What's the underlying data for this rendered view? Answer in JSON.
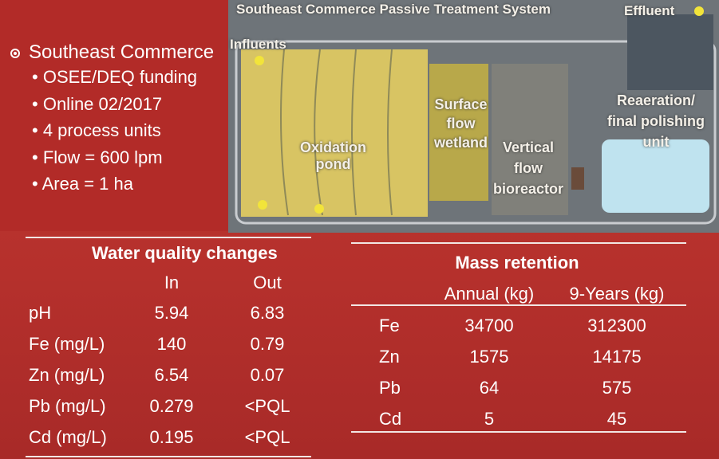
{
  "bullets": {
    "title": "Southeast Commerce",
    "items": [
      "OSEE/DEQ funding",
      "Online 02/2017",
      "4 process units",
      "Flow = 600 lpm",
      "Area = 1 ha"
    ]
  },
  "photo": {
    "title": "Southeast Commerce Passive Treatment System",
    "labels": [
      "Effluent",
      "Influents",
      "Oxidation pond",
      "Surface flow wetland",
      "Vertical flow bioreactor",
      "Reaeration/ final polishing unit"
    ]
  },
  "water_quality": {
    "title": "Water quality changes",
    "columns": [
      "In",
      "Out"
    ],
    "rows": [
      [
        "pH",
        "5.94",
        "6.83"
      ],
      [
        "Fe (mg/L)",
        "140",
        "0.79"
      ],
      [
        "Zn (mg/L)",
        "6.54",
        "0.07"
      ],
      [
        "Pb (mg/L)",
        "0.279",
        "<PQL"
      ],
      [
        "Cd (mg/L)",
        "0.195",
        "<PQL"
      ]
    ]
  },
  "mass_retention": {
    "title": "Mass retention",
    "columns": [
      "Annual (kg)",
      "9-Years (kg)"
    ],
    "rows": [
      [
        "Fe",
        "34700",
        "312300"
      ],
      [
        "Zn",
        "1575",
        "14175"
      ],
      [
        "Pb",
        "64",
        "575"
      ],
      [
        "Cd",
        "5",
        "45"
      ]
    ]
  }
}
